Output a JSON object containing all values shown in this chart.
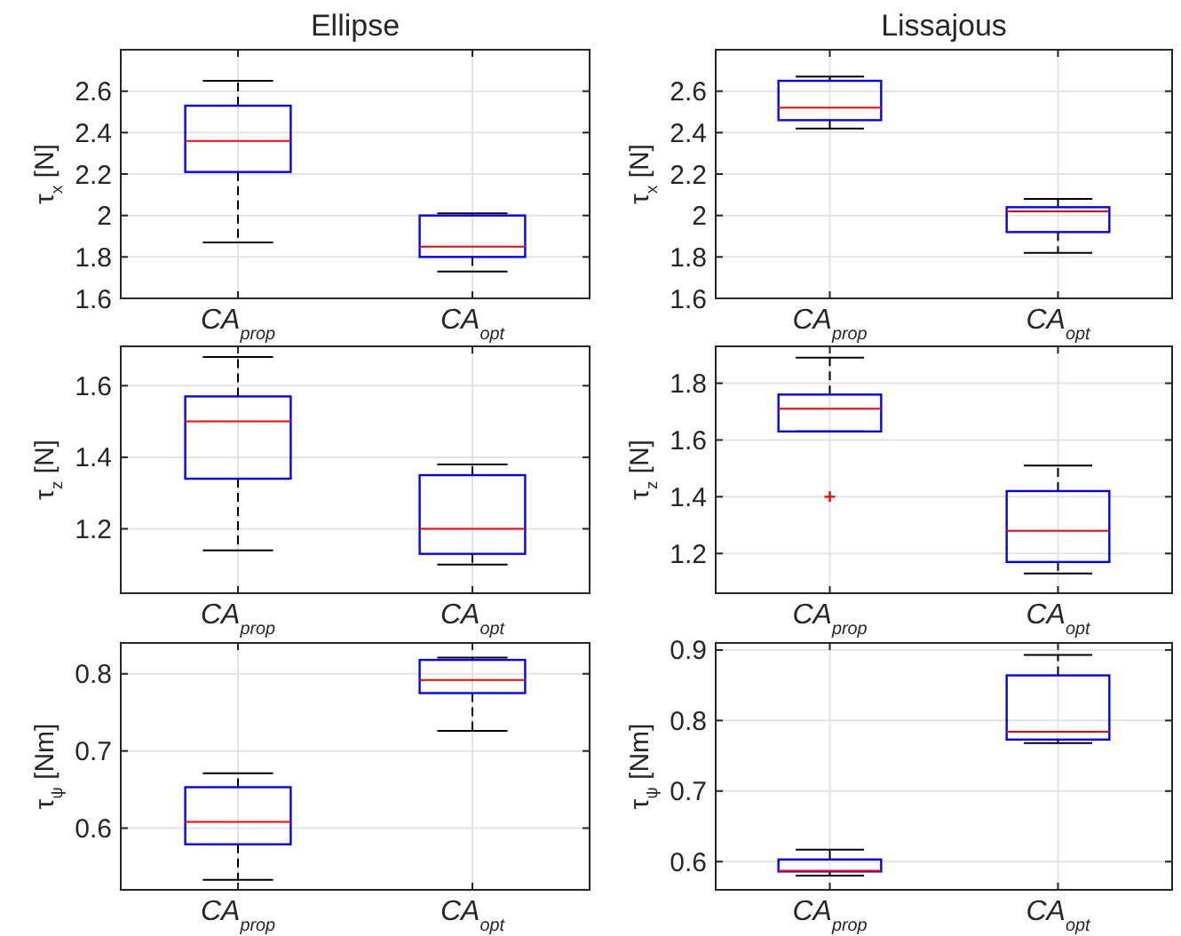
{
  "chart_data": [
    {
      "type": "box",
      "title": "Ellipse",
      "ylabel": "τ$_{x}$ [N]",
      "categories": [
        "CA$_{prop}$",
        "CA$_{opt}$"
      ],
      "color": "#0000ff",
      "grid": true,
      "ylim": [
        1.6,
        2.8
      ],
      "yticks": [
        1.6,
        1.8,
        2,
        2.2,
        2.4,
        2.6
      ],
      "boxes": [
        {
          "low": 1.87,
          "q1": 2.21,
          "median": 2.36,
          "q3": 2.53,
          "high": 2.65
        },
        {
          "low": 1.73,
          "q1": 1.8,
          "median": 1.85,
          "q3": 2.0,
          "high": 2.01
        }
      ]
    },
    {
      "type": "box",
      "title": "Lissajous",
      "ylabel": "τ$_{x}$ [N]",
      "categories": [
        "CA$_{prop}$",
        "CA$_{opt}$"
      ],
      "color": "#0000ff",
      "grid": true,
      "ylim": [
        1.6,
        2.8
      ],
      "yticks": [
        1.6,
        1.8,
        2,
        2.2,
        2.4,
        2.6
      ],
      "boxes": [
        {
          "low": 2.42,
          "q1": 2.46,
          "median": 2.52,
          "q3": 2.65,
          "high": 2.67
        },
        {
          "low": 1.82,
          "q1": 1.92,
          "median": 2.02,
          "q3": 2.04,
          "high": 2.08
        }
      ]
    },
    {
      "type": "box",
      "ylabel": "τ$_{z}$ [N]",
      "categories": [
        "CA$_{prop}$",
        "CA$_{opt}$"
      ],
      "color": "#0000ff",
      "grid": true,
      "ylim": [
        1.02,
        1.71
      ],
      "yticks": [
        1.2,
        1.4,
        1.6
      ],
      "boxes": [
        {
          "low": 1.14,
          "q1": 1.34,
          "median": 1.5,
          "q3": 1.57,
          "high": 1.68
        },
        {
          "low": 1.1,
          "q1": 1.13,
          "median": 1.2,
          "q3": 1.35,
          "high": 1.38
        }
      ]
    },
    {
      "type": "box",
      "ylabel": "τ$_{z}$ [N]",
      "categories": [
        "CA$_{prop}$",
        "CA$_{opt}$"
      ],
      "color": "#0000ff",
      "grid": true,
      "ylim": [
        1.06,
        1.93
      ],
      "yticks": [
        1.2,
        1.4,
        1.6,
        1.8
      ],
      "boxes": [
        {
          "low": 1.63,
          "q1": 1.63,
          "median": 1.71,
          "q3": 1.76,
          "high": 1.89,
          "outliers": [
            1.4
          ]
        },
        {
          "low": 1.13,
          "q1": 1.17,
          "median": 1.28,
          "q3": 1.42,
          "high": 1.51
        }
      ]
    },
    {
      "type": "box",
      "ylabel": "τ$_{ψ}$ [Nm]",
      "categories": [
        "CA$_{prop}$",
        "CA$_{opt}$"
      ],
      "color": "#0000ff",
      "grid": true,
      "ylim": [
        0.52,
        0.84
      ],
      "yticks": [
        0.6,
        0.7,
        0.8
      ],
      "boxes": [
        {
          "low": 0.533,
          "q1": 0.579,
          "median": 0.608,
          "q3": 0.653,
          "high": 0.671
        },
        {
          "low": 0.726,
          "q1": 0.775,
          "median": 0.792,
          "q3": 0.818,
          "high": 0.821
        }
      ]
    },
    {
      "type": "box",
      "ylabel": "τ$_{ψ}$ [Nm]",
      "categories": [
        "CA$_{prop}$",
        "CA$_{opt}$"
      ],
      "color": "#0000ff",
      "grid": true,
      "ylim": [
        0.56,
        0.91
      ],
      "yticks": [
        0.6,
        0.7,
        0.8,
        0.9
      ],
      "boxes": [
        {
          "low": 0.58,
          "q1": 0.586,
          "median": 0.587,
          "q3": 0.603,
          "high": 0.617
        },
        {
          "low": 0.768,
          "q1": 0.773,
          "median": 0.784,
          "q3": 0.864,
          "high": 0.893
        }
      ]
    }
  ]
}
